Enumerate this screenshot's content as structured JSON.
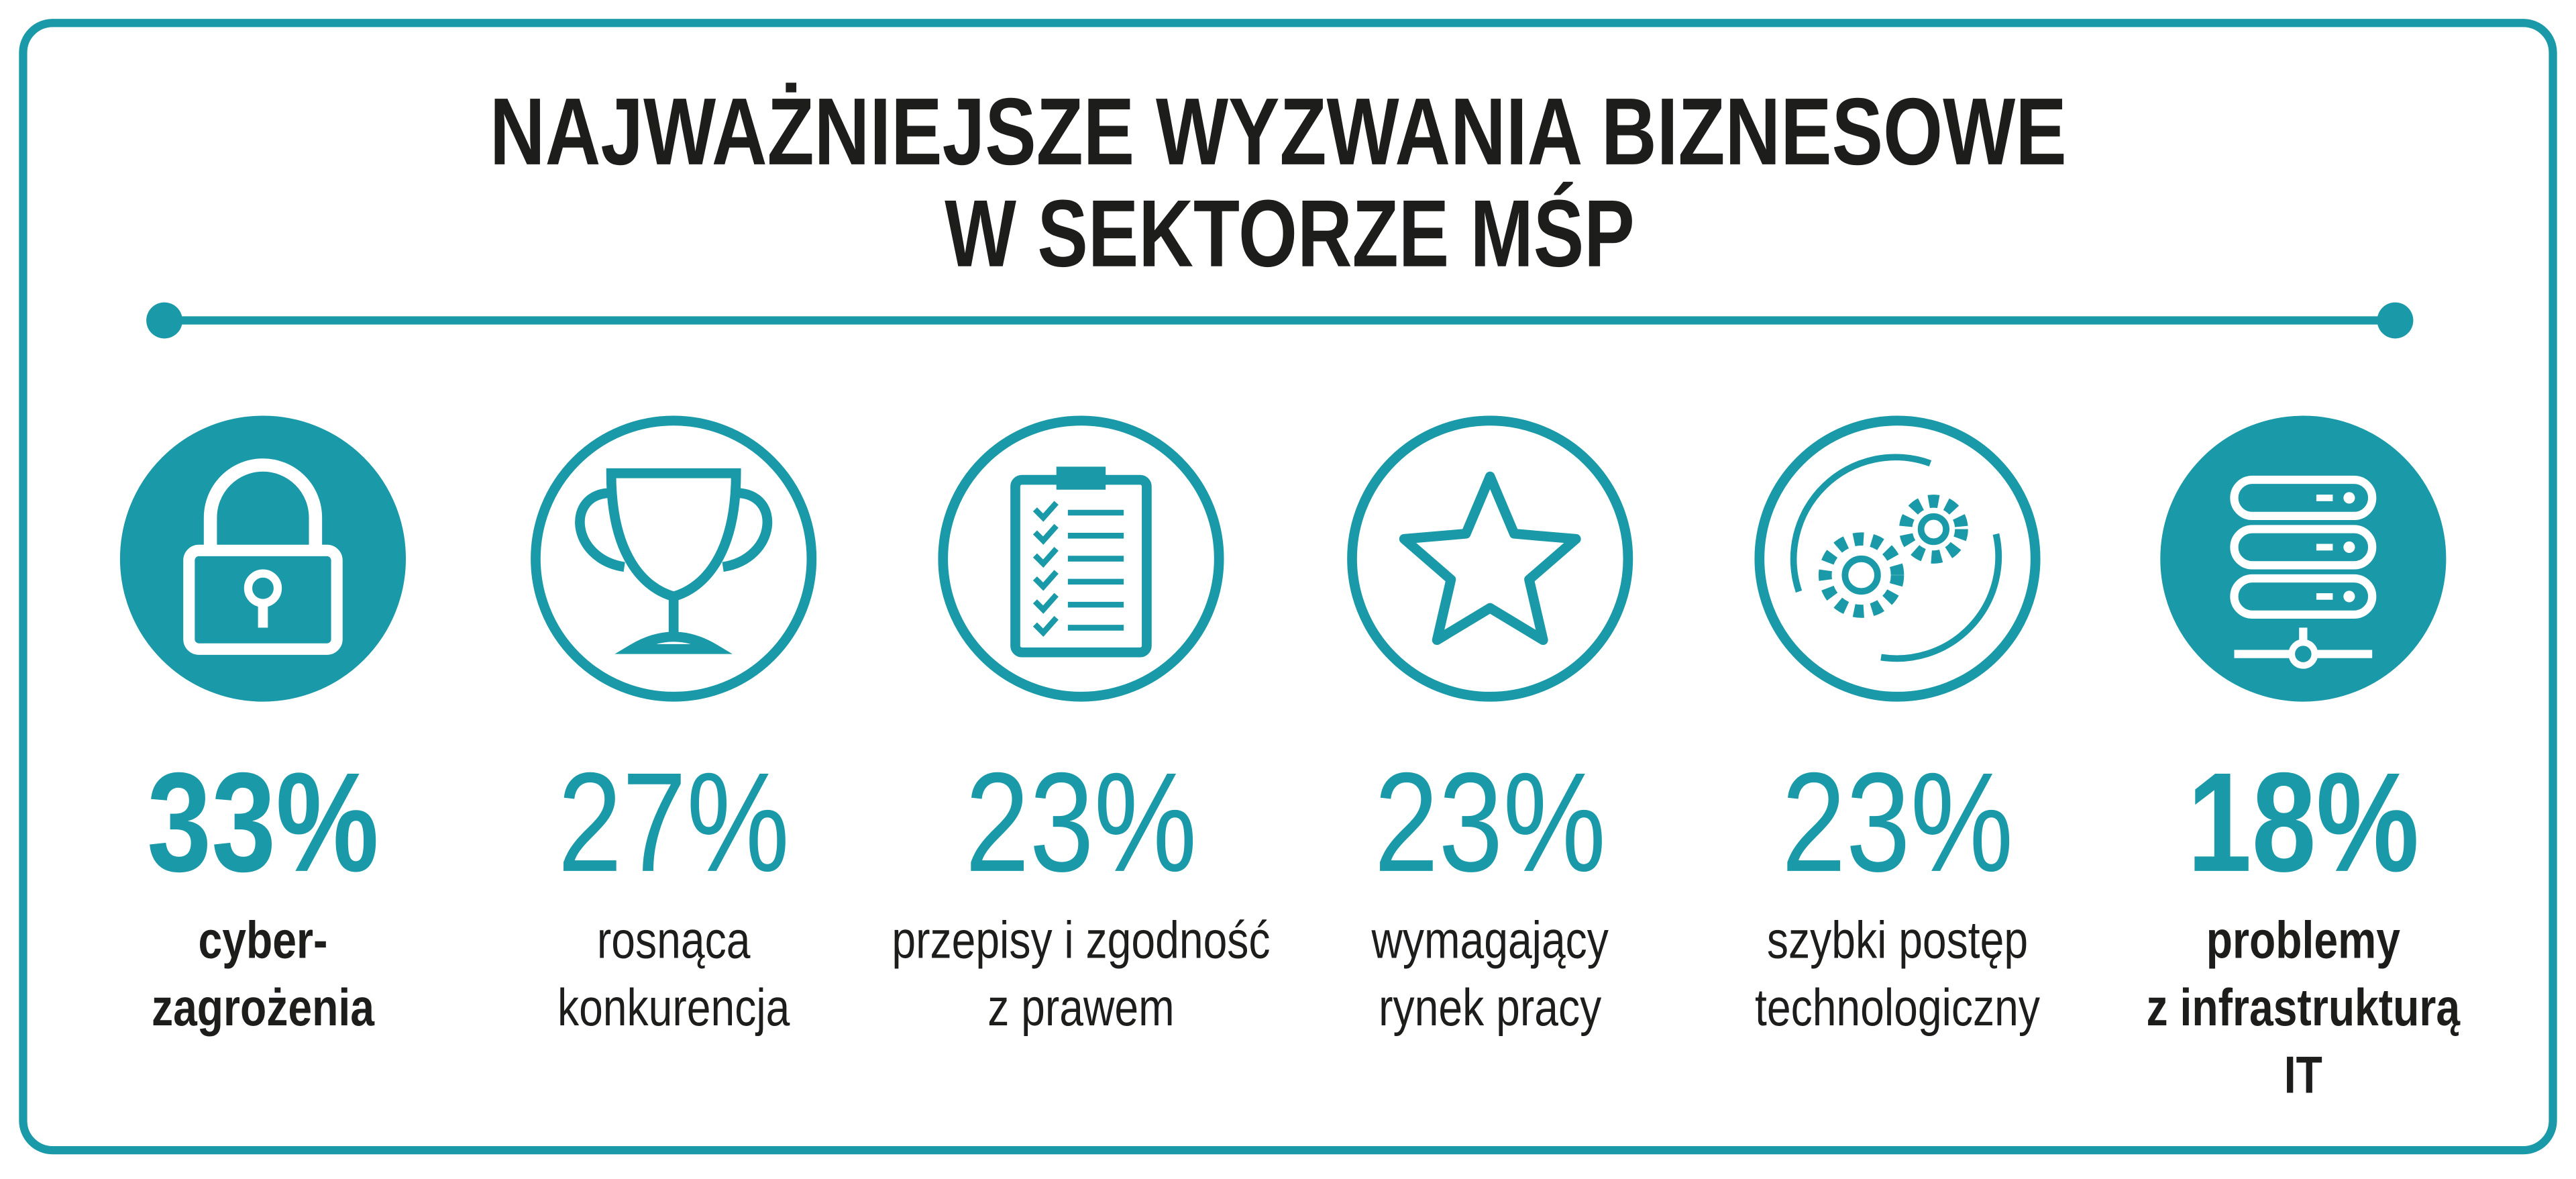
{
  "header": {
    "title": [
      "NAJWAŻNIEJSZE WYZWANIA BIZNESOWE",
      "W SEKTORZE MŚP"
    ]
  },
  "items": [
    {
      "value": "33%",
      "label": [
        "cyber-",
        "zagrożenia"
      ]
    },
    {
      "value": "27%",
      "label": [
        "rosnąca",
        "konkurencja"
      ]
    },
    {
      "value": "23%",
      "label": [
        "przepisy i zgodność",
        "z prawem"
      ]
    },
    {
      "value": "23%",
      "label": [
        "wymagający",
        "rynek pracy"
      ]
    },
    {
      "value": "23%",
      "label": [
        "szybki postęp",
        "technologiczny"
      ]
    },
    {
      "value": "18%",
      "label": [
        "problemy",
        "z infrastrukturą",
        "IT"
      ]
    }
  ]
}
